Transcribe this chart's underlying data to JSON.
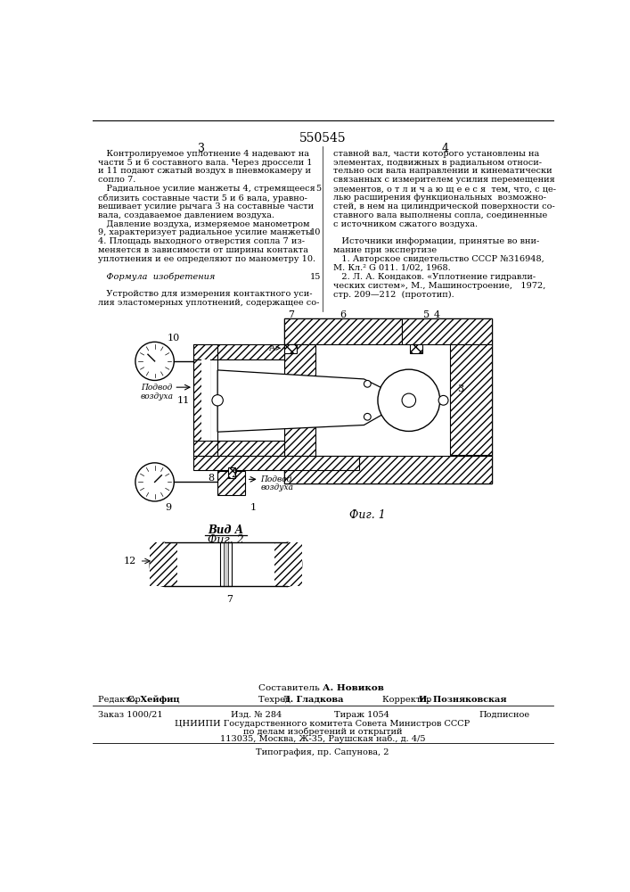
{
  "patent_number": "550545",
  "page_left": "3",
  "page_right": "4",
  "bg_color": "#ffffff",
  "text_color": "#000000",
  "col_left_text": [
    "   Контролируемое уплотнение 4 надевают на",
    "части 5 и 6 составного вала. Через дроссели 1",
    "и 11 подают сжатый воздух в пневмокамеру и",
    "сопло 7.",
    "   Радиальное усилие манжеты 4, стремящееся",
    "сблизить составные части 5 и 6 вала, уравно-",
    "вешивает усилие рычага 3 на составные части",
    "вала, создаваемое давлением воздуха.",
    "   Давление воздуха, измеряемое манометром",
    "9, характеризует радиальное усилие манжеты",
    "4. Площадь выходного отверстия сопла 7 из-",
    "меняется в зависимости от ширины контакта",
    "уплотнения и ее определяют по манометру 10.",
    "",
    "   Формула  изобретения",
    "",
    "   Устройство для измерения контактного уси-",
    "лия эластомерных уплотнений, содержащее со-"
  ],
  "col_right_text": [
    "ставной вал, части которого установлены на",
    "элементах, подвижных в радиальном относи-",
    "тельно оси вала направлении и кинематически",
    "связанных с измерителем усилия перемещения",
    "элементов, о т л и ч а ю щ е е с я  тем, что, с це-",
    "лью расширения функциональных  возможно-",
    "стей, в нем на цилиндрической поверхности со-",
    "ставного вала выполнены сопла, соединенные",
    "с источником сжатого воздуха.",
    "",
    "   Источники информации, принятые во вни-",
    "мание при экспертизе",
    "   1. Авторское свидетельство СССР №316948,",
    "М. Кл.² G 011. 1/02, 1968.",
    "   2. Л. А. Кондаков. «Уплотнение гидравли-",
    "ческих систем», М., Машиностроение,   1972,",
    "стр. 209—212  (прототип)."
  ],
  "line_numbers": {
    "4": "5",
    "9": "10",
    "14": "15"
  },
  "fig1_label": "Фиг. 1",
  "fig2_label": "Фиг. 2",
  "vid_a_label": "Вид А",
  "footer_compiler": "Составитель А. Новиков",
  "footer_editor": "Редактор С. Хейфиц",
  "footer_tech": "Техред Л. Гладкова",
  "footer_corrector": "Корректор И. Позняковская",
  "footer_order": "Заказ 1000/21",
  "footer_izd": "Изд. № 284",
  "footer_tirazh": "Тираж 1054",
  "footer_podpisnoe": "Подписное",
  "footer_tsniip": "ЦНИИПИ Государственного комитета Совета Министров СССР",
  "footer_po_delam": "по делам изобретений и открытий",
  "footer_address": "113035, Москва, Ж-35, Раушская наб., д. 4/5",
  "footer_tipograf": "Типография, пр. Сапунова, 2"
}
